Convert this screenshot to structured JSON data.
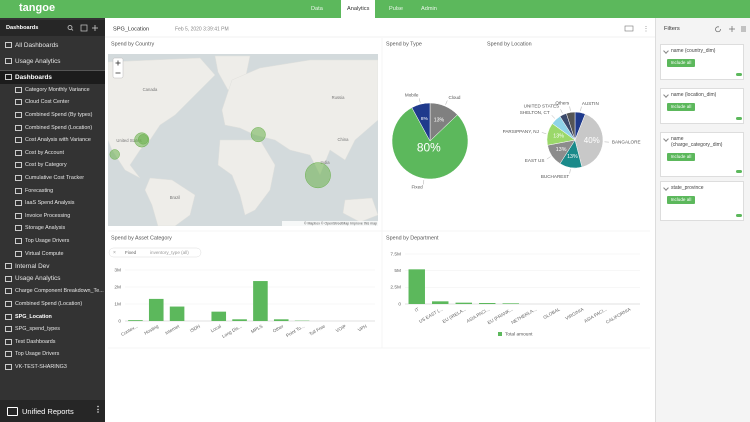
{
  "app": {
    "logo": "tangoe",
    "tabs": [
      "Data",
      "Analytics",
      "Pulse",
      "Admin"
    ]
  },
  "sidebar": {
    "header": "Dashboards",
    "items": [
      "All Dashboards",
      "Usage Analytics",
      "Dashboards",
      "Category Monthly Variance",
      "Cloud Cost Center",
      "Combined Spend (By types)",
      "Combined Spend (Location)",
      "Cost Analysis with Variance",
      "Cost by Account",
      "Cost by Category",
      "Cumulative Cost Tracker",
      "Forecasting",
      "IaaS Spend Analysis",
      "Invoice Processing",
      "Storage Analysis",
      "Top Usage Drivers",
      "Virtual Compute",
      "Internal Dev",
      "Usage Analytics",
      "Charge Component Breakdown_Te...",
      "Combined Spend (Location)",
      "SPG_Location",
      "SPG_spend_types",
      "Test Dashboards",
      "Top Usage Drivers",
      "VK-TEST-SHARING3"
    ],
    "footer": "Unified Reports"
  },
  "toolbar": {
    "title": "SPG_Location",
    "timestamp": "Feb 5, 2020 3:39:41 PM"
  },
  "filters": {
    "title": "Filters",
    "items": [
      {
        "name": "name (country_dim)",
        "button": "Include all"
      },
      {
        "name": "name (location_dim)",
        "button": "Include all"
      },
      {
        "name": "name (charge_category_dim)",
        "button": "Include all"
      },
      {
        "name": "state_province",
        "button": "Include all"
      }
    ]
  },
  "chart_data": [
    {
      "type": "map",
      "title": "Spend by Country",
      "projection": "mercator",
      "xlim": [
        -103.5,
        129.4
      ],
      "ylim": [
        -31,
        76.5
      ],
      "labels": [
        "Canada",
        "United States",
        "Russia",
        "China",
        "India",
        "Brazil"
      ],
      "points": {
        "x": [
          -97.7,
          -74.4,
          -73.1,
          26.1,
          77.6
        ],
        "y": [
          30.3,
          40.9,
          41.3,
          44.4,
          12.97
        ],
        "sizes": [
          6,
          13,
          6,
          13,
          40
        ],
        "color": "#6ab04c"
      },
      "attribution": "© Mapbox © OpenStreetMap Improve this map"
    },
    {
      "type": "pie",
      "title": "Spend by Type",
      "categories": [
        "Cloud",
        "Fixed",
        "Mobile"
      ],
      "values": [
        13,
        80,
        8
      ],
      "value_labels": [
        "13%",
        "80%",
        "8%"
      ],
      "colors": [
        "#808080",
        "#5cb85c",
        "#1f3a8c"
      ]
    },
    {
      "type": "pie",
      "title": "Spend by Location",
      "categories": [
        "AUSTIN",
        "BANGALORE",
        "BUCHAREST",
        "EAST US",
        "PARSIPPANY, NJ",
        "SHELTON, CT",
        "UNITED STATES",
        "Others"
      ],
      "values": [
        6,
        40,
        13,
        13,
        13,
        6,
        4,
        5
      ],
      "value_labels": [
        null,
        "40%",
        "13%",
        "13%",
        "13%",
        null,
        null,
        null
      ],
      "colors": [
        "#1f3a8c",
        "#c8c8c8",
        "#1a8a8a",
        "#8c8c8c",
        "#9bd86a",
        "#8fd3e8",
        "#3b4a6b",
        "#555555"
      ]
    },
    {
      "type": "bar",
      "title": "Spend by Asset Category",
      "filter_chip": {
        "value": "Fixed",
        "field": "inventory_type (all)"
      },
      "categories": [
        "Contex...",
        "Hosting",
        "Internet",
        "ISDN",
        "Local",
        "Long Dis...",
        "MPLS",
        "Other",
        "Point To...",
        "Toll Free",
        "VOIP",
        "VPN"
      ],
      "values": [
        50000,
        1300000,
        850000,
        0,
        550000,
        100000,
        2350000,
        100000,
        20000,
        0,
        0,
        0
      ],
      "color": "#5cb85c",
      "ylim": [
        0,
        3000000
      ],
      "yticks": [
        0,
        {
          "value": 1000000,
          "label": "1M"
        },
        {
          "value": 2000000,
          "label": "2M"
        },
        {
          "value": 3000000,
          "label": "3M"
        }
      ],
      "grid": true
    },
    {
      "type": "bar",
      "title": "Spend by Department",
      "categories": [
        "IT",
        "US EAST (...",
        "EU (IRELA...",
        "ASIA PACI...",
        "EU (FRANK...",
        "NETHERLA...",
        "GLOBAL",
        "VIRGINIA",
        "ASIA PACI...",
        "CALIFORNIA"
      ],
      "series": [
        {
          "name": "Total amount",
          "color": "#5cb85c",
          "values": [
            5200000,
            400000,
            200000,
            150000,
            100000,
            0,
            0,
            0,
            0,
            0
          ]
        }
      ],
      "ylim": [
        0,
        7500000
      ],
      "yticks": [
        0,
        {
          "value": 2500000,
          "label": "2.5M"
        },
        {
          "value": 5000000,
          "label": "5M"
        },
        {
          "value": 7500000,
          "label": "7.5M"
        }
      ],
      "grid": true
    }
  ]
}
